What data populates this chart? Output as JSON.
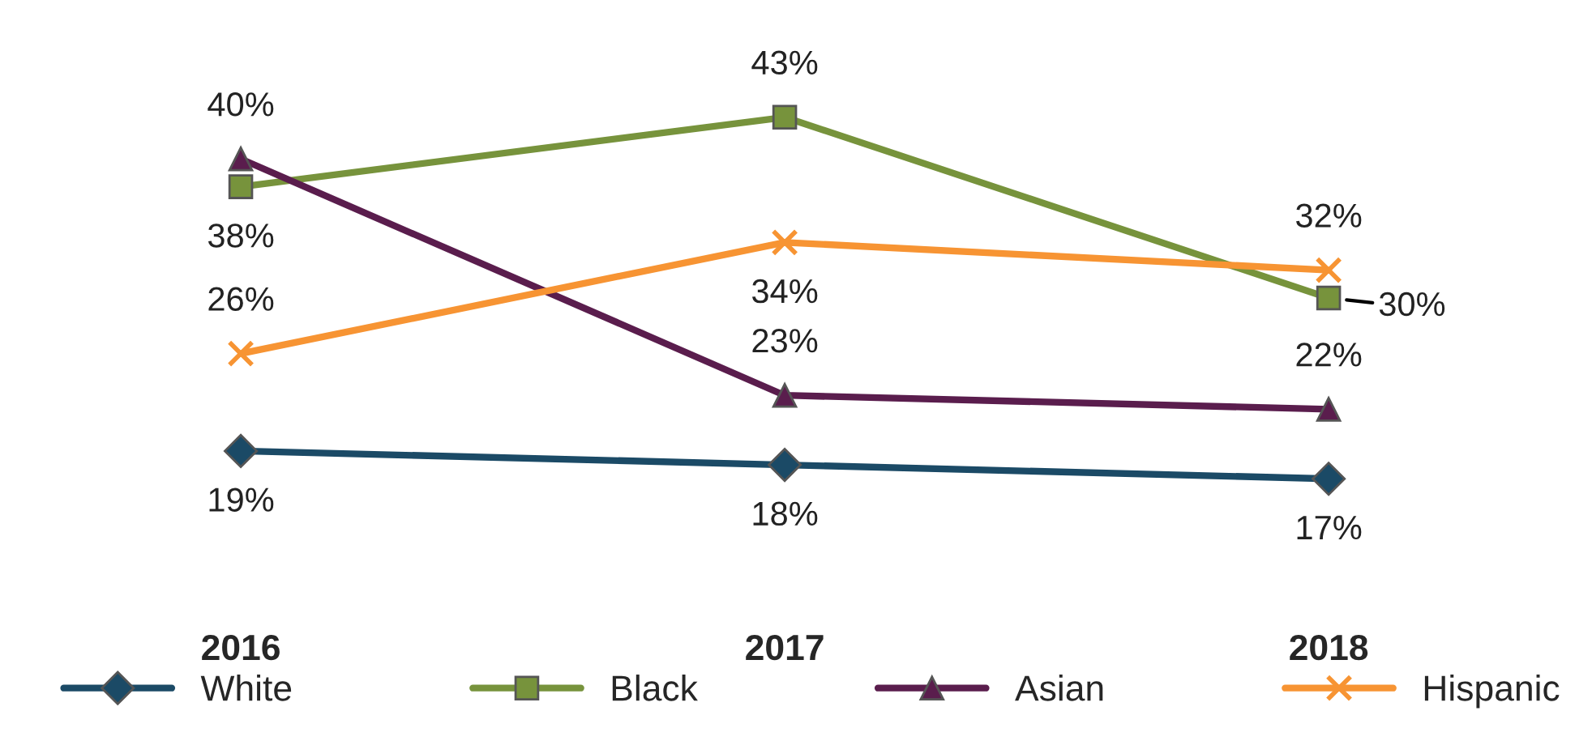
{
  "chart_data": {
    "type": "line",
    "categories": [
      "2016",
      "2017",
      "2018"
    ],
    "legend": "bottom",
    "grid": false,
    "series": [
      {
        "name": "White",
        "color": "#1b4a66",
        "marker": "diamond",
        "values": [
          19,
          18,
          17
        ],
        "value_labels": [
          "19%",
          "18%",
          "17%"
        ]
      },
      {
        "name": "Black",
        "color": "#77933c",
        "marker": "square",
        "values": [
          38,
          43,
          30
        ],
        "value_labels": [
          "38%",
          "43%",
          "30%"
        ]
      },
      {
        "name": "Asian",
        "color": "#5a1d4d",
        "marker": "triangle",
        "values": [
          40,
          23,
          22
        ],
        "value_labels": [
          "40%",
          "23%",
          "22%"
        ]
      },
      {
        "name": "Hispanic",
        "color": "#f79433",
        "marker": "cross",
        "values": [
          26,
          34,
          32
        ],
        "value_labels": [
          "26%",
          "34%",
          "32%"
        ]
      }
    ]
  }
}
